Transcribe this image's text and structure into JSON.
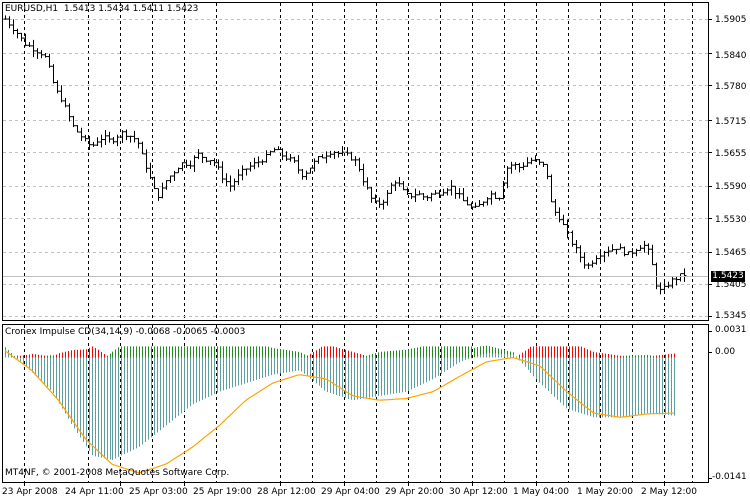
{
  "main_panel": {
    "symbol": "EURUSD,H1",
    "ohlc": "1.5413 1.5434 1.5411 1.5423",
    "current_price": "1.5423",
    "price_labels": [
      "1.5905",
      "1.5840",
      "1.5780",
      "1.5715",
      "1.5655",
      "1.5590",
      "1.5530",
      "1.5465",
      "1.5405",
      "1.5345"
    ]
  },
  "indicator_panel": {
    "title": "Cronex Impulse CD(34,14,9) -0.0068 -0.0065 -0.0003",
    "scale_labels": [
      "0.0031",
      "0.00",
      "-0.0141"
    ]
  },
  "copyright": "MT4NF, © 2001-2008 MetaQuotes Software Corp.",
  "time_labels": [
    "23 Apr 2008",
    "24 Apr 11:00",
    "25 Apr 03:00",
    "25 Apr 19:00",
    "28 Apr 12:00",
    "29 Apr 04:00",
    "29 Apr 20:00",
    "30 Apr 12:00",
    "1 May 04:00",
    "1 May 20:00",
    "2 May 12:00"
  ],
  "colors": {
    "background": "#ffffff",
    "grid": "#c0c0c0",
    "bars": "#000000",
    "hist_up": "#228b22",
    "hist_down": "#ff0000",
    "hist_main": "#5f9ea0",
    "signal_line": "#ffa500",
    "current_price_line": "#c0c0c0"
  },
  "chart_data": {
    "type": "ohlc",
    "timeframe": "H1",
    "y_range": [
      1.5345,
      1.5905
    ],
    "price_path": [
      1.5905,
      1.5895,
      1.5885,
      1.5875,
      1.586,
      1.5855,
      1.585,
      1.5845,
      1.584,
      1.583,
      1.58,
      1.577,
      1.576,
      1.574,
      1.572,
      1.57,
      1.569,
      1.568,
      1.567,
      1.5665,
      1.5675,
      1.568,
      1.568,
      1.5675,
      1.568,
      1.569,
      1.569,
      1.5685,
      1.568,
      1.567,
      1.564,
      1.562,
      1.559,
      1.557,
      1.558,
      1.56,
      1.561,
      1.562,
      1.563,
      1.5635,
      1.563,
      1.564,
      1.565,
      1.5645,
      1.564,
      1.564,
      1.563,
      1.561,
      1.56,
      1.559,
      1.56,
      1.561,
      1.562,
      1.5625,
      1.563,
      1.5635,
      1.564,
      1.5645,
      1.5655,
      1.566,
      1.565,
      1.5645,
      1.564,
      1.5635,
      1.562,
      1.561,
      1.562,
      1.563,
      1.564,
      1.5645,
      1.565,
      1.5655,
      1.5655,
      1.565,
      1.565,
      1.5645,
      1.564,
      1.5625,
      1.56,
      1.558,
      1.556,
      1.5555,
      1.556,
      1.557,
      1.559,
      1.56,
      1.559,
      1.5575,
      1.557,
      1.5575,
      1.5575,
      1.557,
      1.557,
      1.5575,
      1.5575,
      1.558,
      1.5585,
      1.559,
      1.558,
      1.557,
      1.556,
      1.5555,
      1.5545,
      1.555,
      1.556,
      1.557,
      1.5575,
      1.557,
      1.557,
      1.562,
      1.563,
      1.563,
      1.5625,
      1.563,
      1.5635,
      1.564,
      1.5635,
      1.563,
      1.5625,
      1.556,
      1.554,
      1.553,
      1.551,
      1.549,
      1.5475,
      1.546,
      1.5445,
      1.544,
      1.545,
      1.546,
      1.5465,
      1.547,
      1.547,
      1.5475,
      1.547,
      1.5465,
      1.546,
      1.547,
      1.5475,
      1.548,
      1.547,
      1.544,
      1.54,
      1.539,
      1.54,
      1.541,
      1.5415,
      1.542,
      1.5423
    ],
    "indicator": {
      "name": "Cronex Impulse CD",
      "params": [
        34,
        14,
        9
      ],
      "values": [
        -0.0068,
        -0.0065,
        -0.0003
      ],
      "y_range": [
        -0.0141,
        0.0031
      ],
      "series": [
        {
          "name": "histogram",
          "x_norm": [
            0,
            0.03,
            0.07,
            0.1,
            0.13,
            0.16,
            0.2,
            0.24,
            0.28,
            0.32,
            0.36,
            0.4,
            0.44,
            0.48,
            0.52,
            0.56,
            0.6,
            0.64,
            0.68,
            0.72,
            0.76,
            0.8,
            0.84,
            0.88,
            0.92,
            0.96,
            1.0
          ],
          "values": [
            0.001,
            -0.001,
            -0.004,
            -0.008,
            -0.0115,
            -0.012,
            -0.0105,
            -0.008,
            -0.0055,
            -0.004,
            -0.003,
            -0.002,
            -0.0015,
            -0.004,
            -0.005,
            -0.0045,
            -0.004,
            -0.0025,
            -0.0005,
            0.0005,
            0.0003,
            -0.003,
            -0.006,
            -0.007,
            -0.007,
            -0.0065,
            -0.0068
          ]
        },
        {
          "name": "signal",
          "x_norm": [
            0,
            0.04,
            0.08,
            0.12,
            0.16,
            0.2,
            0.24,
            0.28,
            0.32,
            0.36,
            0.4,
            0.44,
            0.48,
            0.52,
            0.56,
            0.6,
            0.64,
            0.68,
            0.72,
            0.76,
            0.8,
            0.84,
            0.88,
            0.92,
            0.96,
            1.0
          ],
          "values": [
            0.0008,
            -0.0015,
            -0.005,
            -0.0095,
            -0.0125,
            -0.0135,
            -0.0125,
            -0.0105,
            -0.008,
            -0.005,
            -0.003,
            -0.002,
            -0.0025,
            -0.0045,
            -0.005,
            -0.0048,
            -0.004,
            -0.0022,
            -0.0005,
            0.0,
            -0.001,
            -0.004,
            -0.0065,
            -0.007,
            -0.0066,
            -0.0065
          ]
        }
      ]
    }
  }
}
